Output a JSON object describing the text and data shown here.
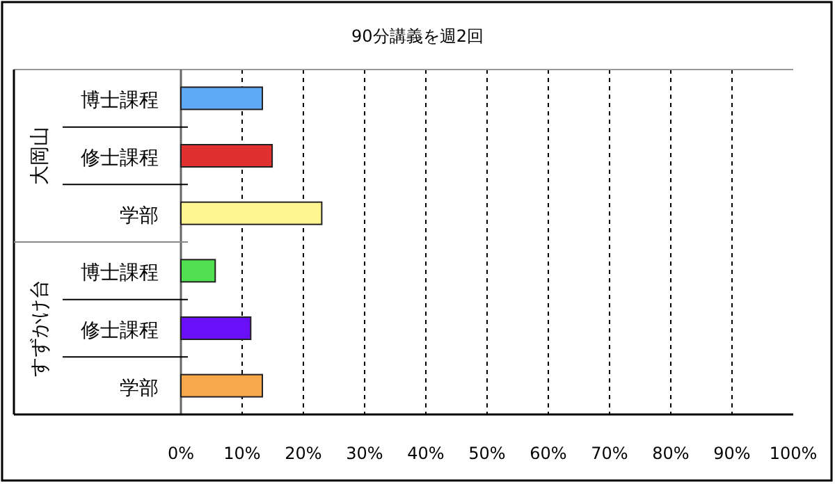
{
  "chart_data": {
    "type": "bar",
    "orientation": "horizontal",
    "title": "90分講義を週2回",
    "categories": [
      "博士課程",
      "修士課程",
      "学部",
      "博士課程",
      "修士課程",
      "学部"
    ],
    "values": [
      13.3,
      14.9,
      23.0,
      5.6,
      11.4,
      13.3
    ],
    "colors": [
      "#5fa8f5",
      "#e03030",
      "#fff68f",
      "#50e050",
      "#6a10f8",
      "#f6a84a"
    ],
    "xlim": [
      0,
      100
    ],
    "xticks": [
      {
        "value": 0,
        "label": "0%"
      },
      {
        "value": 10,
        "label": "10%"
      },
      {
        "value": 20,
        "label": "20%"
      },
      {
        "value": 30,
        "label": "30%"
      },
      {
        "value": 40,
        "label": "40%"
      },
      {
        "value": 50,
        "label": "50%"
      },
      {
        "value": 60,
        "label": "60%"
      },
      {
        "value": 70,
        "label": "70%"
      },
      {
        "value": 80,
        "label": "80%"
      },
      {
        "value": 90,
        "label": "90%"
      },
      {
        "value": 100,
        "label": "100%"
      }
    ],
    "grid": "x",
    "annotations": [
      "大岡山",
      "すずかけ台"
    ]
  }
}
